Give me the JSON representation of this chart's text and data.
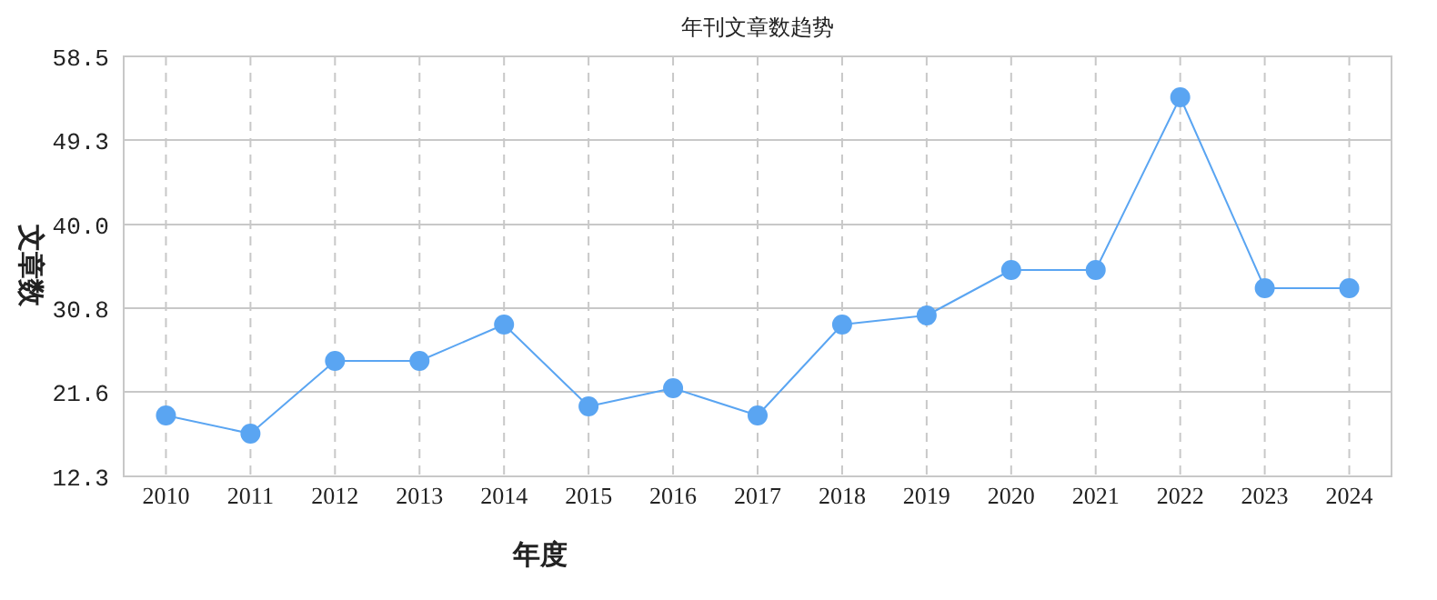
{
  "chart_data": {
    "type": "line",
    "title": "年刊文章数趋势",
    "xlabel": "年度",
    "ylabel": "文章数",
    "categories": [
      "2010",
      "2011",
      "2012",
      "2013",
      "2014",
      "2015",
      "2016",
      "2017",
      "2018",
      "2019",
      "2020",
      "2021",
      "2022",
      "2023",
      "2024"
    ],
    "series": [
      {
        "color": "#5aa5f2",
        "values": [
          19,
          17,
          25,
          25,
          29,
          20,
          22,
          19,
          29,
          30,
          35,
          35,
          54,
          33,
          33
        ]
      }
    ],
    "ylim": [
      12.3,
      58.5
    ],
    "yticks": [
      12.3,
      21.6,
      {
        "value": 30.8,
        "label": "30.8"
      },
      {
        "value": 40.0,
        "label": "40.0"
      },
      49.3,
      58.5
    ],
    "grid": true,
    "marker": "circle",
    "line_style": "solid"
  }
}
